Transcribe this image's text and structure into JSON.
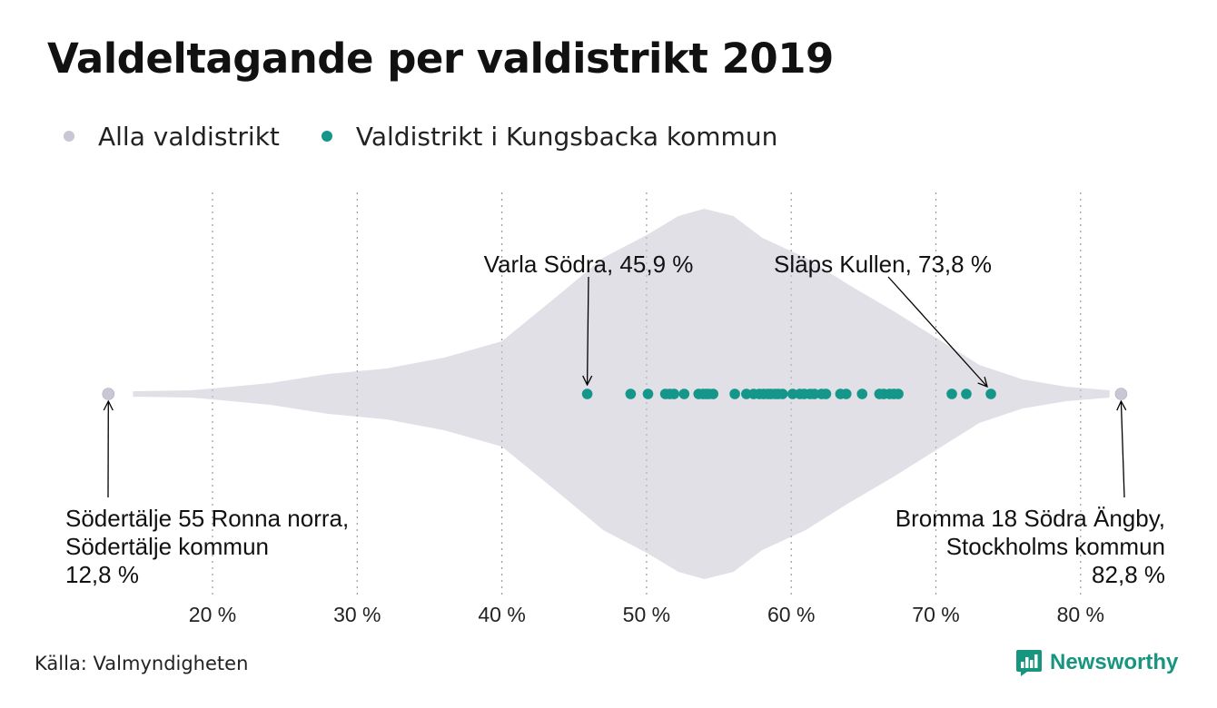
{
  "title": "Valdeltagande per valdistrikt 2019",
  "legend": {
    "all": "Alla valdistrikt",
    "highlight": "Valdistrikt i Kungsbacka kommun"
  },
  "source": "Källa: Valmyndigheten",
  "brand": "Newsworthy",
  "colors": {
    "all": "#c9c7d3",
    "highlight": "#15968a",
    "grid": "#9a9a9a",
    "brand": "#16957f"
  },
  "chart_data": {
    "type": "scatter",
    "subtype": "beeswarm",
    "title": "Valdeltagande per valdistrikt 2019",
    "xlabel": "",
    "ylabel": "",
    "xlim": [
      12,
      84
    ],
    "x_ticks": [
      20,
      30,
      40,
      50,
      60,
      70,
      80
    ],
    "x_tick_labels": [
      "20 %",
      "30 %",
      "40 %",
      "50 %",
      "60 %",
      "70 %",
      "80 %"
    ],
    "grid": "vertical dotted",
    "legend_position": "top-left",
    "series": [
      {
        "name": "Alla valdistrikt",
        "values": [
          12.8,
          82.8
        ],
        "distribution_note": "Thousands of districts, densest between 45 and 65 %, peak near 53-54 %"
      },
      {
        "name": "Valdistrikt i Kungsbacka kommun",
        "values": [
          45.9,
          48.9,
          50.1,
          51.3,
          51.6,
          51.9,
          52.6,
          53.6,
          53.9,
          54.1,
          54.3,
          54.6,
          56.1,
          56.9,
          57.4,
          57.8,
          58.1,
          58.4,
          58.6,
          58.9,
          59.1,
          59.4,
          60.1,
          60.6,
          60.9,
          61.3,
          61.6,
          62.1,
          62.4,
          63.4,
          63.8,
          64.9,
          66.1,
          66.4,
          66.8,
          67.1,
          67.4,
          71.1,
          72.1,
          73.8
        ]
      }
    ],
    "annotations": [
      {
        "label": "Varla Södra, 45,9 %",
        "x": 45.9
      },
      {
        "label": "Släps Kullen, 73,8 %",
        "x": 73.8
      },
      {
        "lines": [
          "Södertälje 55 Ronna norra,",
          "Södertälje kommun",
          "12,8 %"
        ],
        "x": 12.8
      },
      {
        "lines": [
          "Bromma 18 Södra Ängby,",
          "Stockholms kommun",
          "82,8 %"
        ],
        "x": 82.8
      }
    ]
  }
}
